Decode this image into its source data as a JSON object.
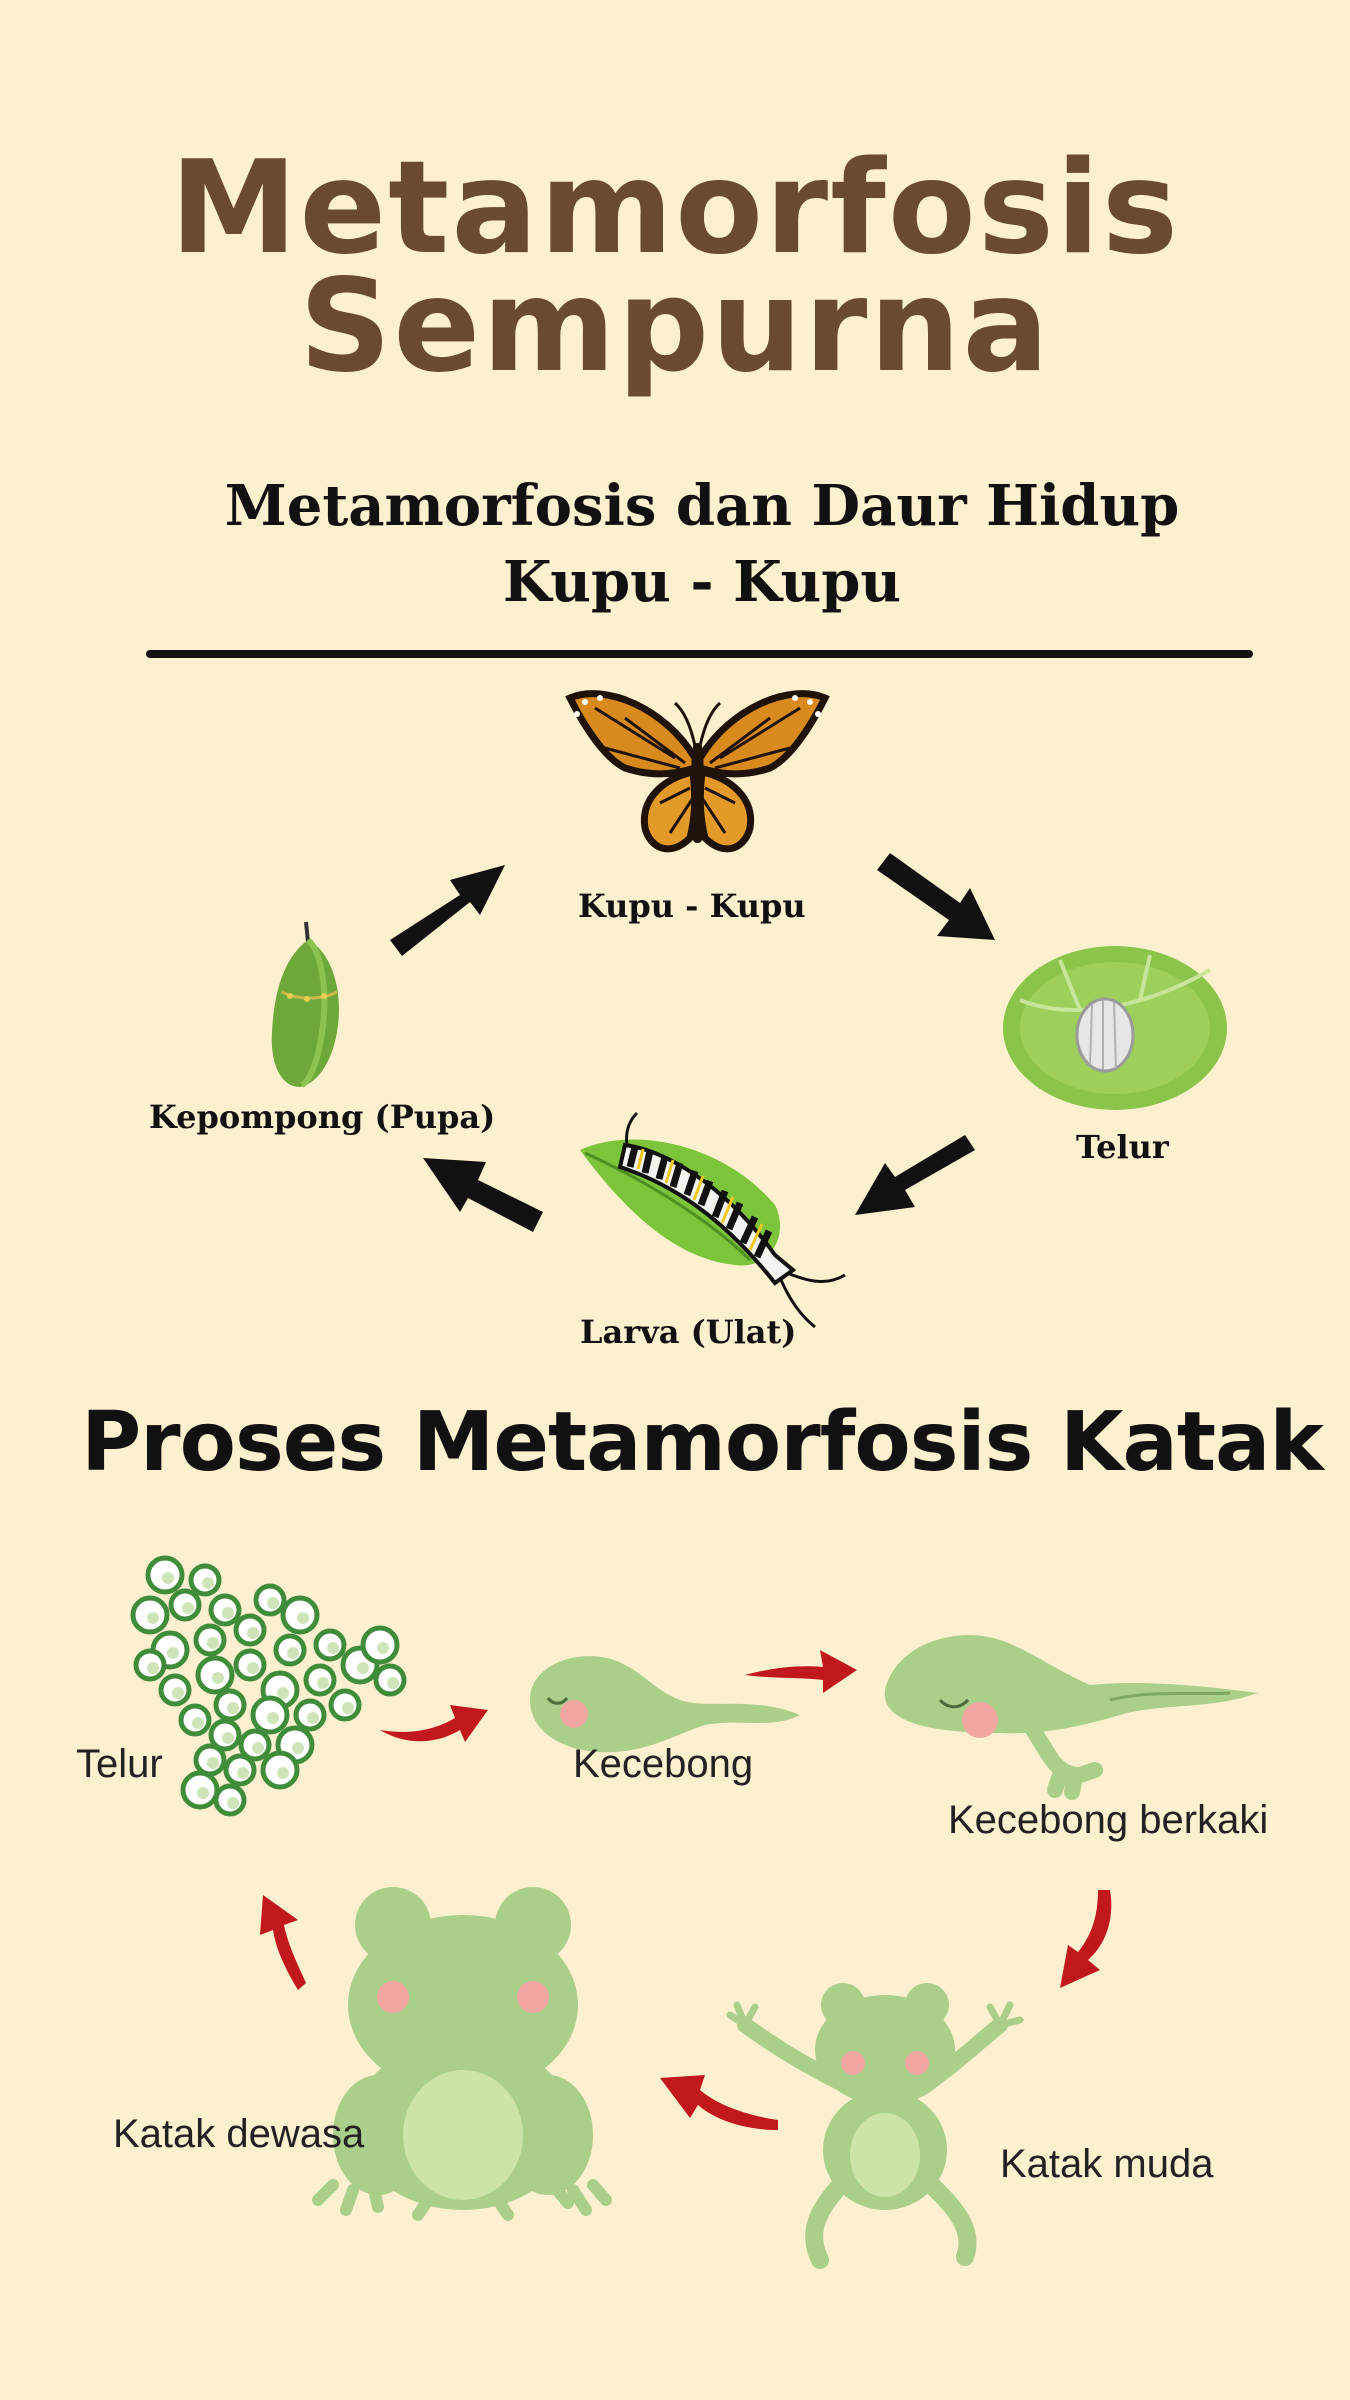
{
  "title": {
    "line1": "Metamorfosis",
    "line2": "Sempurna"
  },
  "butterfly_section": {
    "heading_line1": "Metamorfosis dan Daur Hidup",
    "heading_line2": "Kupu - Kupu",
    "stages": {
      "adult": "Kupu - Kupu",
      "egg": "Telur",
      "larva": "Larva (Ulat)",
      "pupa": "Kepompong (Pupa)"
    }
  },
  "frog_section": {
    "heading": "Proses Metamorfosis Katak",
    "stages": {
      "egg": "Telur",
      "tadpole": "Kecebong",
      "legged_tadpole": "Kecebong berkaki",
      "froglet": "Katak muda",
      "adult": "Katak dewasa"
    }
  },
  "colors": {
    "background": "#fdf0cf",
    "title": "#6b4a32",
    "frog_green": "#a8c98a",
    "arrow_red": "#c0181c"
  }
}
